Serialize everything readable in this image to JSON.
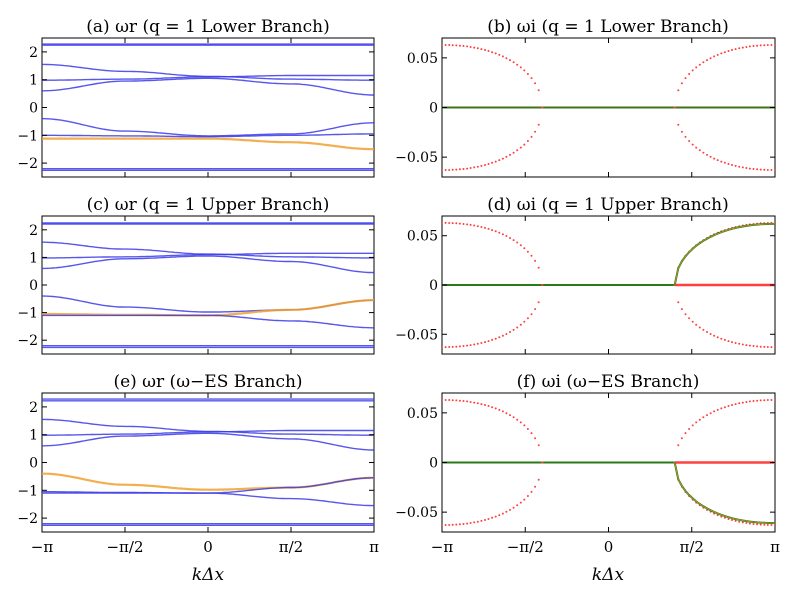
{
  "figure": {
    "xlabel": "kΔx",
    "x_tick_labels": [
      "−π",
      "−π/2",
      "0",
      "π/2",
      "π"
    ],
    "x_tick_values": [
      -3.14159,
      -1.5708,
      0,
      1.5708,
      3.14159
    ]
  },
  "colors": {
    "blue": "#3a3ae8",
    "orange": "#f0a030",
    "red": "#ff4040",
    "green": "#2a7a1a"
  },
  "chart_data": [
    {
      "id": "a",
      "type": "line",
      "title": "(a) ωr (q = 1 Lower Branch)",
      "ylim": [
        -2.5,
        2.5
      ],
      "yticks": [
        -2,
        -1,
        0,
        1,
        2
      ],
      "ytick_labels": [
        "−2",
        "−1",
        "0",
        "1",
        "2"
      ],
      "xlim": [
        -3.14159,
        3.14159
      ],
      "series": [
        {
          "name": "band1",
          "color": "blue",
          "x": [
            -3.14159,
            -1.5708,
            0,
            1.5708,
            3.14159
          ],
          "y": [
            2.28,
            2.28,
            2.28,
            2.28,
            2.28
          ]
        },
        {
          "name": "band2",
          "color": "blue",
          "x": [
            -3.14159,
            -1.5708,
            0,
            1.5708,
            3.14159
          ],
          "y": [
            2.24,
            2.24,
            2.24,
            2.24,
            2.24
          ]
        },
        {
          "name": "band3",
          "color": "blue",
          "x": [
            -3.14159,
            -1.5708,
            0,
            1.5708,
            3.14159
          ],
          "y": [
            1.55,
            1.3,
            1.12,
            1.02,
            0.98
          ]
        },
        {
          "name": "band4",
          "color": "blue",
          "x": [
            -3.14159,
            -1.5708,
            0,
            1.5708,
            3.14159
          ],
          "y": [
            0.6,
            0.95,
            1.05,
            0.85,
            0.45
          ]
        },
        {
          "name": "band5",
          "color": "blue",
          "x": [
            -3.14159,
            -1.5708,
            0,
            1.5708,
            3.14159
          ],
          "y": [
            0.98,
            1.02,
            1.1,
            1.15,
            1.15
          ]
        },
        {
          "name": "band6",
          "color": "blue",
          "x": [
            -3.14159,
            -1.5708,
            0,
            1.5708,
            3.14159
          ],
          "y": [
            -0.4,
            -0.85,
            -1.02,
            -0.95,
            -0.55
          ]
        },
        {
          "name": "band7",
          "color": "blue",
          "x": [
            -3.14159,
            -1.5708,
            0,
            1.5708,
            3.14159
          ],
          "y": [
            -1.0,
            -1.02,
            -1.05,
            -1.0,
            -0.95
          ]
        },
        {
          "name": "band8",
          "color": "orange",
          "x": [
            -3.14159,
            -1.5708,
            0,
            1.5708,
            3.14159
          ],
          "y": [
            -1.12,
            -1.12,
            -1.12,
            -1.25,
            -1.5
          ]
        },
        {
          "name": "band9",
          "color": "blue",
          "x": [
            -3.14159,
            -1.5708,
            0,
            1.5708,
            3.14159
          ],
          "y": [
            -2.2,
            -2.2,
            -2.2,
            -2.2,
            -2.2
          ]
        },
        {
          "name": "band10",
          "color": "blue",
          "x": [
            -3.14159,
            -1.5708,
            0,
            1.5708,
            3.14159
          ],
          "y": [
            -2.26,
            -2.26,
            -2.26,
            -2.26,
            -2.26
          ]
        }
      ]
    },
    {
      "id": "b",
      "type": "scatter",
      "title": "(b) ωi (q = 1 Lower Branch)",
      "ylim": [
        -0.07,
        0.07
      ],
      "yticks": [
        -0.05,
        0,
        0.05
      ],
      "ytick_labels": [
        "−0.05",
        "0",
        "0.05"
      ],
      "xlim": [
        -3.14159,
        3.14159
      ],
      "zero_line": {
        "color": "green",
        "x_from": -3.14159,
        "x_to": 3.14159
      },
      "arcs": [
        {
          "color": "red",
          "side": "left",
          "x_edge": -3.14159,
          "x_end": -1.25,
          "amplitude": 0.063
        },
        {
          "color": "red",
          "side": "right",
          "x_edge": 3.14159,
          "x_end": 1.25,
          "amplitude": 0.063
        }
      ]
    },
    {
      "id": "c",
      "type": "line",
      "title": "(c) ωr (q = 1 Upper Branch)",
      "ylim": [
        -2.5,
        2.5
      ],
      "yticks": [
        -2,
        -1,
        0,
        1,
        2
      ],
      "ytick_labels": [
        "−2",
        "−1",
        "0",
        "1",
        "2"
      ],
      "xlim": [
        -3.14159,
        3.14159
      ],
      "series": [
        {
          "name": "band1",
          "color": "blue",
          "x": [
            -3.14159,
            -1.5708,
            0,
            1.5708,
            3.14159
          ],
          "y": [
            2.25,
            2.25,
            2.25,
            2.25,
            2.25
          ]
        },
        {
          "name": "band2",
          "color": "blue",
          "x": [
            -3.14159,
            -1.5708,
            0,
            1.5708,
            3.14159
          ],
          "y": [
            2.21,
            2.21,
            2.21,
            2.21,
            2.21
          ]
        },
        {
          "name": "band3",
          "color": "blue",
          "x": [
            -3.14159,
            -1.5708,
            0,
            1.5708,
            3.14159
          ],
          "y": [
            1.55,
            1.3,
            1.12,
            1.02,
            0.98
          ]
        },
        {
          "name": "band4",
          "color": "blue",
          "x": [
            -3.14159,
            -1.5708,
            0,
            1.5708,
            3.14159
          ],
          "y": [
            0.6,
            0.95,
            1.05,
            0.85,
            0.45
          ]
        },
        {
          "name": "band5",
          "color": "blue",
          "x": [
            -3.14159,
            -1.5708,
            0,
            1.5708,
            3.14159
          ],
          "y": [
            0.98,
            1.02,
            1.1,
            1.15,
            1.15
          ]
        },
        {
          "name": "band6",
          "color": "blue",
          "x": [
            -3.14159,
            -1.5708,
            0,
            1.5708,
            3.14159
          ],
          "y": [
            -0.4,
            -0.8,
            -0.98,
            -0.9,
            -0.55
          ]
        },
        {
          "name": "band7",
          "color": "orange",
          "x": [
            -3.14159,
            -1.5708,
            0,
            1.5708,
            3.14159
          ],
          "y": [
            -1.05,
            -1.08,
            -1.1,
            -0.9,
            -0.55
          ]
        },
        {
          "name": "band8",
          "color": "blue",
          "x": [
            -3.14159,
            -1.5708,
            0,
            1.5708,
            3.14159
          ],
          "y": [
            -1.1,
            -1.1,
            -1.1,
            -1.3,
            -1.55
          ]
        },
        {
          "name": "band9",
          "color": "blue",
          "x": [
            -3.14159,
            -1.5708,
            0,
            1.5708,
            3.14159
          ],
          "y": [
            -2.2,
            -2.2,
            -2.2,
            -2.2,
            -2.2
          ]
        },
        {
          "name": "band10",
          "color": "blue",
          "x": [
            -3.14159,
            -1.5708,
            0,
            1.5708,
            3.14159
          ],
          "y": [
            -2.26,
            -2.26,
            -2.26,
            -2.26,
            -2.26
          ]
        }
      ]
    },
    {
      "id": "d",
      "type": "scatter",
      "title": "(d) ωi (q = 1 Upper Branch)",
      "ylim": [
        -0.07,
        0.07
      ],
      "yticks": [
        -0.05,
        0,
        0.05
      ],
      "ytick_labels": [
        "−0.05",
        "0",
        "0.05"
      ],
      "xlim": [
        -3.14159,
        3.14159
      ],
      "zero_line": {
        "color": "green",
        "x_from": -3.14159,
        "x_to": 1.25
      },
      "red_zero_line": {
        "color": "red",
        "x_from": 1.25,
        "x_to": 3.14159
      },
      "arcs": [
        {
          "color": "red",
          "side": "left",
          "x_edge": -3.14159,
          "x_end": -1.25,
          "amplitude": 0.063
        },
        {
          "color": "red",
          "side": "right",
          "x_edge": 3.14159,
          "x_end": 1.25,
          "amplitude": 0.063
        },
        {
          "color": "green",
          "side": "right-upper",
          "x_edge": 3.14159,
          "x_end": 1.25,
          "amplitude": 0.062
        }
      ]
    },
    {
      "id": "e",
      "type": "line",
      "title": "(e) ωr (ω−ES Branch)",
      "ylim": [
        -2.5,
        2.5
      ],
      "yticks": [
        -2,
        -1,
        0,
        1,
        2
      ],
      "ytick_labels": [
        "−2",
        "−1",
        "0",
        "1",
        "2"
      ],
      "xlim": [
        -3.14159,
        3.14159
      ],
      "series": [
        {
          "name": "band1",
          "color": "blue",
          "x": [
            -3.14159,
            -1.5708,
            0,
            1.5708,
            3.14159
          ],
          "y": [
            2.28,
            2.28,
            2.28,
            2.28,
            2.28
          ]
        },
        {
          "name": "band2",
          "color": "blue",
          "x": [
            -3.14159,
            -1.5708,
            0,
            1.5708,
            3.14159
          ],
          "y": [
            2.22,
            2.22,
            2.22,
            2.22,
            2.22
          ]
        },
        {
          "name": "band3",
          "color": "blue",
          "x": [
            -3.14159,
            -1.5708,
            0,
            1.5708,
            3.14159
          ],
          "y": [
            1.55,
            1.3,
            1.12,
            1.02,
            0.98
          ]
        },
        {
          "name": "band4",
          "color": "blue",
          "x": [
            -3.14159,
            -1.5708,
            0,
            1.5708,
            3.14159
          ],
          "y": [
            0.6,
            0.95,
            1.05,
            0.85,
            0.45
          ]
        },
        {
          "name": "band5",
          "color": "blue",
          "x": [
            -3.14159,
            -1.5708,
            0,
            1.5708,
            3.14159
          ],
          "y": [
            0.98,
            1.02,
            1.1,
            1.15,
            1.15
          ]
        },
        {
          "name": "band6",
          "color": "orange",
          "x": [
            -3.14159,
            -1.5708,
            0,
            1.5708,
            3.14159
          ],
          "y": [
            -0.4,
            -0.8,
            -0.98,
            -0.9,
            -0.55
          ]
        },
        {
          "name": "band7",
          "color": "blue",
          "x": [
            -3.14159,
            -1.5708,
            0,
            1.5708,
            3.14159
          ],
          "y": [
            -1.05,
            -1.08,
            -1.1,
            -0.9,
            -0.55
          ]
        },
        {
          "name": "band8",
          "color": "blue",
          "x": [
            -3.14159,
            -1.5708,
            0,
            1.5708,
            3.14159
          ],
          "y": [
            -1.1,
            -1.1,
            -1.1,
            -1.3,
            -1.55
          ]
        },
        {
          "name": "band9",
          "color": "blue",
          "x": [
            -3.14159,
            -1.5708,
            0,
            1.5708,
            3.14159
          ],
          "y": [
            -2.2,
            -2.2,
            -2.2,
            -2.2,
            -2.2
          ]
        },
        {
          "name": "band10",
          "color": "blue",
          "x": [
            -3.14159,
            -1.5708,
            0,
            1.5708,
            3.14159
          ],
          "y": [
            -2.26,
            -2.26,
            -2.26,
            -2.26,
            -2.26
          ]
        }
      ]
    },
    {
      "id": "f",
      "type": "scatter",
      "title": "(f) ωi (ω−ES Branch)",
      "ylim": [
        -0.07,
        0.07
      ],
      "yticks": [
        -0.05,
        0,
        0.05
      ],
      "ytick_labels": [
        "−0.05",
        "0",
        "0.05"
      ],
      "xlim": [
        -3.14159,
        3.14159
      ],
      "zero_line": {
        "color": "green",
        "x_from": -3.14159,
        "x_to": 1.25
      },
      "red_zero_line": {
        "color": "red",
        "x_from": 1.25,
        "x_to": 3.14159
      },
      "arcs": [
        {
          "color": "red",
          "side": "left",
          "x_edge": -3.14159,
          "x_end": -1.25,
          "amplitude": 0.063
        },
        {
          "color": "red",
          "side": "right",
          "x_edge": 3.14159,
          "x_end": 1.25,
          "amplitude": 0.063
        },
        {
          "color": "green",
          "side": "right-lower",
          "x_edge": 3.14159,
          "x_end": 1.25,
          "amplitude": 0.061
        }
      ]
    }
  ]
}
